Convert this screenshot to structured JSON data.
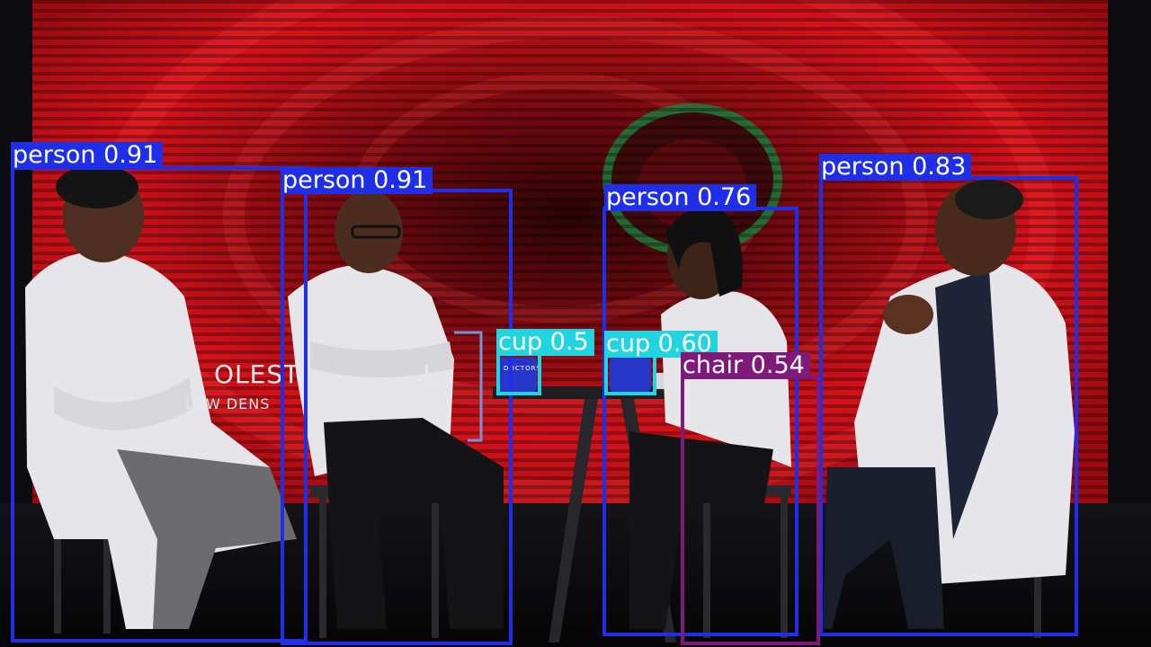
{
  "scene": {
    "screen_text": {
      "line1": "OLEST",
      "line1_end": "L",
      "line2": "LOW DENS"
    },
    "mug_print": "DOCTORS"
  },
  "colors": {
    "person": "#1f2ee8",
    "cup": "#22d3e0",
    "chair": "#7e1a7a",
    "screen_red": "#d3121a",
    "screen_dark": "#3a0508",
    "coat": "#e8e8ec",
    "skin": "#5b3626",
    "pants": "#1c1c22"
  },
  "detections": [
    {
      "class": "person",
      "score": "0.91",
      "text": "person 0.91"
    },
    {
      "class": "person",
      "score": "0.91",
      "text": "person 0.91"
    },
    {
      "class": "person",
      "score": "0.76",
      "text": "person 0.76"
    },
    {
      "class": "person",
      "score": "0.83",
      "text": "person 0.83"
    },
    {
      "class": "cup",
      "score": "0.5",
      "text": "cup 0.5"
    },
    {
      "class": "cup",
      "score": "0.60",
      "text": "cup 0.60"
    },
    {
      "class": "chair",
      "score": "0.54",
      "text": "chair 0.54"
    }
  ]
}
